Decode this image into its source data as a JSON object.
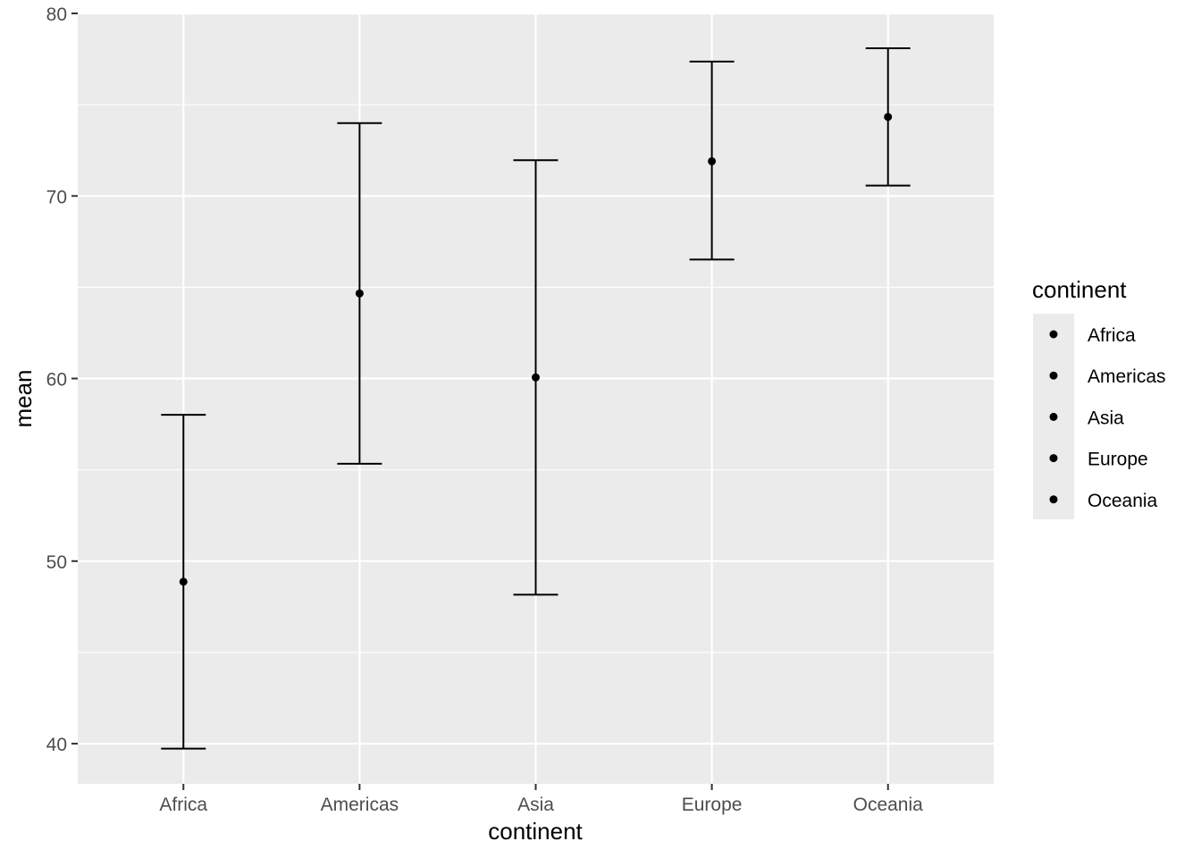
{
  "chart_data": {
    "type": "errorbar",
    "xlabel": "continent",
    "ylabel": "mean",
    "categories": [
      "Africa",
      "Americas",
      "Asia",
      "Europe",
      "Oceania"
    ],
    "means": [
      48.87,
      64.66,
      60.06,
      71.9,
      74.33
    ],
    "lower": [
      39.73,
      55.33,
      48.16,
      66.52,
      70.57
    ],
    "upper": [
      58.01,
      73.99,
      71.96,
      77.36,
      78.09
    ],
    "ylim": [
      37.8,
      80.0
    ],
    "yticks": [
      40,
      50,
      60,
      70,
      80
    ],
    "ytick_labels": [
      "40",
      "50",
      "60",
      "70",
      "80"
    ],
    "grid": true,
    "legend": {
      "title": "continent",
      "position": "right",
      "entries": [
        "Africa",
        "Americas",
        "Asia",
        "Europe",
        "Oceania"
      ]
    },
    "colors": {
      "panel": "#ebebeb",
      "grid": "#ffffff",
      "mark": "#000000",
      "tick_text": "#4d4d4d",
      "axis_title": "#000000"
    }
  }
}
